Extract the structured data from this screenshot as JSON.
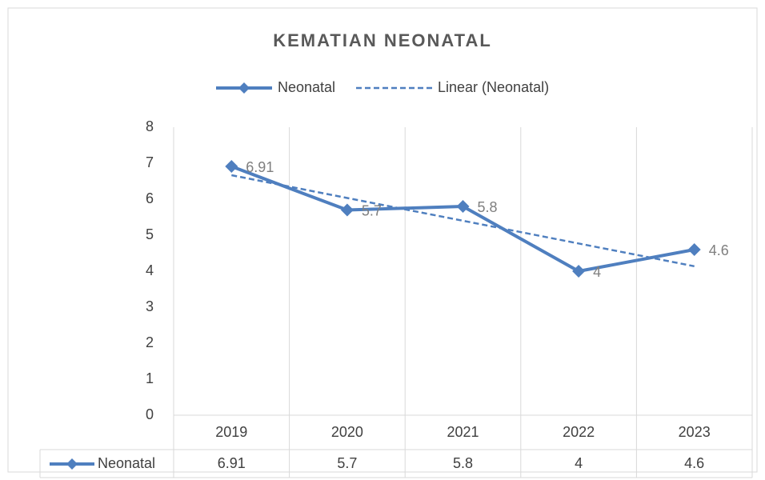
{
  "chart_data": {
    "type": "line",
    "title": "KEMATIAN NEONATAL",
    "categories": [
      "2019",
      "2020",
      "2021",
      "2022",
      "2023"
    ],
    "series": [
      {
        "name": "Neonatal",
        "color": "#4f7fbf",
        "values": [
          6.91,
          5.7,
          5.8,
          4,
          4.6
        ]
      }
    ],
    "trendline": {
      "name": "Linear (Neonatal)",
      "type": "linear"
    },
    "ylim": [
      0,
      8
    ],
    "yticks": [
      0,
      1,
      2,
      3,
      4,
      5,
      6,
      7,
      8
    ],
    "grid": "x",
    "legend": "top",
    "data_labels": true,
    "data_table": true
  }
}
